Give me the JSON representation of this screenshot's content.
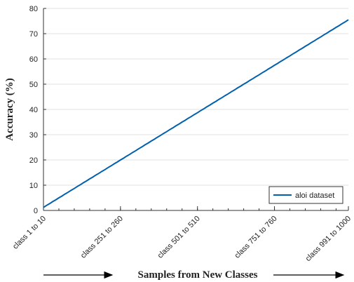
{
  "chart_data": {
    "type": "line",
    "ylabel": "Accuracy (%)",
    "xlabel": "Samples from New Classes",
    "categories": [
      "class 1 to 10",
      null,
      null,
      null,
      null,
      null,
      null,
      null,
      null,
      null,
      null,
      null,
      null,
      null,
      null,
      null,
      null,
      null,
      null,
      null,
      null,
      null,
      null,
      null,
      null,
      "class 251 to 260",
      null,
      null,
      null,
      null,
      null,
      null,
      null,
      null,
      null,
      null,
      null,
      null,
      null,
      null,
      null,
      null,
      null,
      null,
      null,
      null,
      null,
      null,
      null,
      null,
      "class 501 to 510",
      null,
      null,
      null,
      null,
      null,
      null,
      null,
      null,
      null,
      null,
      null,
      null,
      null,
      null,
      null,
      null,
      null,
      null,
      null,
      null,
      null,
      null,
      null,
      null,
      "class 751 to 760",
      null,
      null,
      null,
      null,
      null,
      null,
      null,
      null,
      null,
      null,
      null,
      null,
      null,
      null,
      null,
      null,
      null,
      null,
      null,
      null,
      null,
      null,
      null,
      "class 991 to 1000"
    ],
    "series": [
      {
        "name": "aloi dataset",
        "color": "#0060ad",
        "values": [
          1.2,
          2.0,
          2.7,
          3.5,
          4.2,
          5.0,
          5.7,
          6.5,
          7.2,
          8.0,
          8.7,
          9.5,
          10.2,
          11.0,
          11.7,
          12.5,
          13.2,
          14.0,
          14.7,
          15.5,
          16.2,
          17.0,
          17.7,
          18.5,
          19.2,
          20.0,
          20.7,
          21.5,
          22.2,
          23.0,
          23.7,
          24.5,
          25.2,
          26.0,
          26.7,
          27.5,
          28.2,
          29.0,
          29.7,
          30.5,
          31.2,
          32.0,
          32.7,
          33.5,
          34.2,
          35.0,
          35.7,
          36.5,
          37.2,
          38.0,
          38.7,
          39.5,
          40.2,
          41.0,
          41.7,
          42.5,
          43.2,
          44.0,
          44.7,
          45.5,
          46.2,
          47.0,
          47.7,
          48.5,
          49.2,
          50.0,
          50.7,
          51.5,
          52.2,
          53.0,
          53.7,
          54.5,
          55.2,
          56.0,
          56.7,
          57.5,
          58.2,
          59.0,
          59.7,
          60.5,
          61.2,
          62.0,
          62.7,
          63.5,
          64.2,
          65.0,
          65.7,
          66.5,
          67.2,
          68.0,
          68.7,
          69.5,
          70.2,
          71.0,
          71.7,
          72.5,
          73.2,
          74.0,
          74.7,
          75.5
        ]
      }
    ],
    "ylim": [
      0,
      80
    ],
    "yticks": [
      0,
      10,
      20,
      30,
      40,
      50,
      60,
      70,
      80
    ],
    "grid": true,
    "legend": "lower right"
  }
}
